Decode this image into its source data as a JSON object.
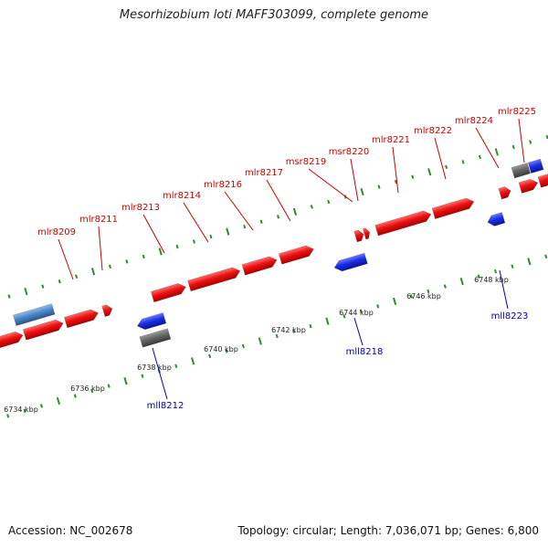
{
  "header": {
    "title": "Mesorhizobium loti MAFF303099, complete genome"
  },
  "footer": {
    "accession": "Accession: NC_002678",
    "topology": "Topology: circular; Length: 7,036,071 bp; Genes: 6,800"
  },
  "colors": {
    "forward_gene": "#ee1111",
    "reverse_gene": "#2233dd",
    "forward_label": "#cc0000",
    "reverse_label": "#0000aa",
    "pseudo_gene": "#666666",
    "rna_gene": "#4a86c8",
    "backbone": "#888888",
    "tick": "#2e8b2e"
  },
  "scale": {
    "upper_ticks": [
      "6748 kbp",
      "6746 kbp",
      "6744 kbp",
      "6742 kbp",
      "6740 kbp",
      "6738 kbp",
      "6736 kbp",
      "6734 kbp"
    ]
  },
  "genes": {
    "forward_labels": [
      "mlr8209",
      "mlr8211",
      "mlr8213",
      "mlr8214",
      "mlr8216",
      "mlr8217",
      "msr8219",
      "msr8220",
      "mlr8221",
      "mlr8222",
      "mlr8224",
      "mlr8225"
    ],
    "reverse_labels": [
      "mll8212",
      "mll8218",
      "mll8223"
    ]
  }
}
